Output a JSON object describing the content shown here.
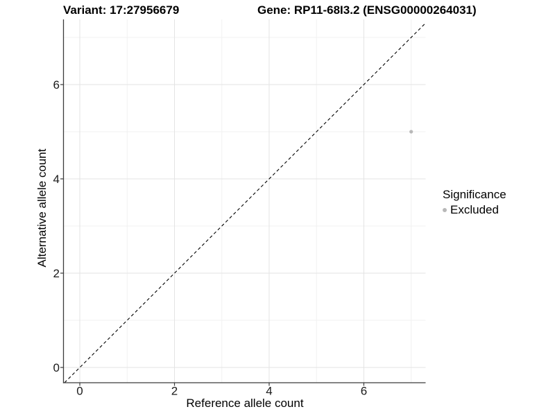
{
  "header": {
    "variant_title": "Variant: 17:27956679",
    "gene_title": "Gene: RP11-68I3.2 (ENSG00000264031)"
  },
  "legend": {
    "title": "Significance",
    "items": [
      {
        "label": "Excluded",
        "color": "#b8b8b8"
      }
    ]
  },
  "chart_data": {
    "type": "scatter",
    "title": "",
    "xlabel": "Reference allele count",
    "ylabel": "Alternative allele count",
    "xlim": [
      -0.345,
      7.305
    ],
    "ylim": [
      -0.324,
      7.382
    ],
    "x_major_ticks": [
      0,
      2,
      4,
      6
    ],
    "x_minor_ticks": [
      1,
      3,
      5,
      7
    ],
    "y_major_ticks": [
      0,
      2,
      4,
      6
    ],
    "y_minor_ticks": [
      1,
      3,
      5,
      7
    ],
    "grid": true,
    "legend_position": "right",
    "series": [
      {
        "name": "Excluded",
        "color": "#b8b8b8",
        "points": [
          {
            "x": 7,
            "y": 5
          }
        ]
      }
    ],
    "reference_line": {
      "type": "identity",
      "slope": 1,
      "intercept": 0,
      "style": "dashed",
      "color": "#000000"
    },
    "colors": {
      "axis_line": "#3a3a3a",
      "major_grid": "#e3e3e3",
      "minor_grid": "#f1f1f1",
      "tick_label": "#1a1a1a",
      "background": "#ffffff"
    }
  }
}
